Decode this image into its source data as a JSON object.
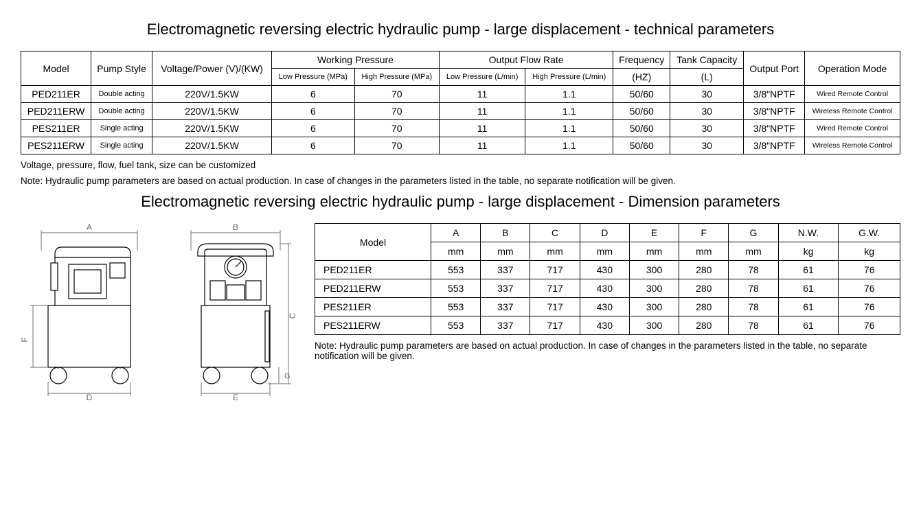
{
  "tech": {
    "title": "Electromagnetic reversing electric hydraulic pump - large displacement - technical parameters",
    "headers": {
      "model": "Model",
      "pump_style": "Pump Style",
      "voltage_power": "Voltage/Power (V)/(KW)",
      "working_pressure": "Working Pressure",
      "output_flow": "Output Flow Rate",
      "frequency": "Frequency",
      "frequency_unit": "(HZ)",
      "tank": "Tank Capacity",
      "tank_unit": "(L)",
      "output_port": "Output Port",
      "op_mode": "Operation Mode",
      "lp_mpa": "Low Pressure (MPa)",
      "hp_mpa": "High Pressure (MPa)",
      "lp_lmin": "Low Pressure (L/min)",
      "hp_lmin": "High Pressure (L/min)"
    },
    "rows": [
      {
        "model": "PED211ER",
        "style": "Double acting",
        "vp": "220V/1.5KW",
        "lp": "6",
        "hp": "70",
        "lf": "11",
        "hf": "1.1",
        "freq": "50/60",
        "tank": "30",
        "port": "3/8\"NPTF",
        "mode": "Wired Remote Control"
      },
      {
        "model": "PED211ERW",
        "style": "Double acting",
        "vp": "220V/1.5KW",
        "lp": "6",
        "hp": "70",
        "lf": "11",
        "hf": "1.1",
        "freq": "50/60",
        "tank": "30",
        "port": "3/8\"NPTF",
        "mode": "Wireless Remote Control"
      },
      {
        "model": "PES211ER",
        "style": "Single acting",
        "vp": "220V/1.5KW",
        "lp": "6",
        "hp": "70",
        "lf": "11",
        "hf": "1.1",
        "freq": "50/60",
        "tank": "30",
        "port": "3/8\"NPTF",
        "mode": "Wired Remote Control"
      },
      {
        "model": "PES211ERW",
        "style": "Single acting",
        "vp": "220V/1.5KW",
        "lp": "6",
        "hp": "70",
        "lf": "11",
        "hf": "1.1",
        "freq": "50/60",
        "tank": "30",
        "port": "3/8\"NPTF",
        "mode": "Wireless Remote Control"
      }
    ],
    "note1": "Voltage, pressure, flow, fuel tank, size can be customized",
    "note2": "Note: Hydraulic pump parameters are based on actual production. In case of changes in the parameters listed in the table, no separate notification will be given."
  },
  "dim": {
    "title": "Electromagnetic reversing electric hydraulic pump - large displacement - Dimension parameters",
    "headers": {
      "model": "Model",
      "a": "A",
      "b": "B",
      "c": "C",
      "d": "D",
      "e": "E",
      "f": "F",
      "g": "G",
      "nw": "N.W.",
      "gw": "G.W.",
      "mm": "mm",
      "kg": "kg"
    },
    "rows": [
      {
        "model": "PED211ER",
        "a": "553",
        "b": "337",
        "c": "717",
        "d": "430",
        "e": "300",
        "f": "280",
        "g": "78",
        "nw": "61",
        "gw": "76"
      },
      {
        "model": "PED211ERW",
        "a": "553",
        "b": "337",
        "c": "717",
        "d": "430",
        "e": "300",
        "f": "280",
        "g": "78",
        "nw": "61",
        "gw": "76"
      },
      {
        "model": "PES211ER",
        "a": "553",
        "b": "337",
        "c": "717",
        "d": "430",
        "e": "300",
        "f": "280",
        "g": "78",
        "nw": "61",
        "gw": "76"
      },
      {
        "model": "PES211ERW",
        "a": "553",
        "b": "337",
        "c": "717",
        "d": "430",
        "e": "300",
        "f": "280",
        "g": "78",
        "nw": "61",
        "gw": "76"
      }
    ],
    "note": "Note: Hydraulic pump parameters are based on actual production. In case of changes in the parameters listed in the table, no separate notification will be given."
  },
  "diagram": {
    "labels": {
      "a": "A",
      "b": "B",
      "c": "C",
      "d": "D",
      "e": "E",
      "f": "F",
      "g": "G"
    },
    "stroke": "#000000",
    "fill": "#ffffff",
    "label_color": "#666666"
  }
}
